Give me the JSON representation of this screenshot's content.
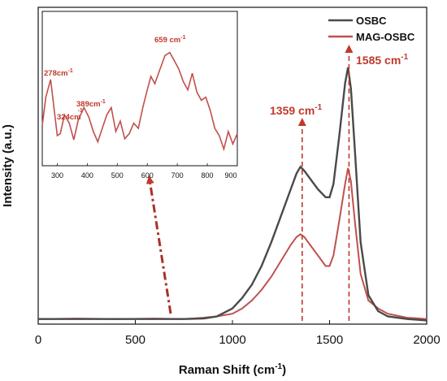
{
  "chart_data": {
    "type": "line",
    "xlabel": "Raman Shift (cm",
    "xlabel_sup": "-1",
    "xlabel_close": ")",
    "ylabel": "Intensity (a.u.)",
    "xlim": [
      0,
      2000
    ],
    "x_ticks": [
      "0",
      "500",
      "1000",
      "1500",
      "2000"
    ],
    "legend_position": "top-right",
    "colors": {
      "OSBC": "#4a4a4a",
      "MAG-OSBC": "#c0504d",
      "annotation": "#c0392b"
    },
    "series": [
      {
        "name": "OSBC",
        "x": [
          0,
          200,
          400,
          600,
          750,
          850,
          920,
          1000,
          1050,
          1100,
          1150,
          1200,
          1250,
          1300,
          1330,
          1350,
          1370,
          1400,
          1440,
          1480,
          1500,
          1520,
          1550,
          1580,
          1595,
          1610,
          1630,
          1660,
          1700,
          1750,
          1800,
          1900,
          2000
        ],
        "y": [
          0.01,
          0.01,
          0.01,
          0.01,
          0.01,
          0.012,
          0.02,
          0.05,
          0.09,
          0.14,
          0.21,
          0.3,
          0.4,
          0.5,
          0.56,
          0.585,
          0.57,
          0.54,
          0.5,
          0.47,
          0.47,
          0.52,
          0.7,
          0.9,
          0.96,
          0.88,
          0.65,
          0.3,
          0.1,
          0.04,
          0.02,
          0.01,
          0.005
        ]
      },
      {
        "name": "MAG-OSBC",
        "x": [
          0,
          200,
          400,
          600,
          750,
          850,
          920,
          1000,
          1050,
          1100,
          1150,
          1200,
          1250,
          1300,
          1330,
          1350,
          1370,
          1400,
          1440,
          1480,
          1500,
          1520,
          1550,
          1580,
          1595,
          1610,
          1630,
          1660,
          1700,
          1750,
          1800,
          1900,
          2000
        ],
        "y": [
          0.01,
          0.012,
          0.01,
          0.012,
          0.01,
          0.015,
          0.02,
          0.03,
          0.05,
          0.08,
          0.12,
          0.17,
          0.23,
          0.29,
          0.32,
          0.33,
          0.32,
          0.29,
          0.25,
          0.21,
          0.21,
          0.25,
          0.38,
          0.52,
          0.58,
          0.53,
          0.38,
          0.18,
          0.08,
          0.05,
          0.03,
          0.015,
          0.01
        ]
      }
    ],
    "annotations": [
      {
        "text": "1359 cm",
        "sup": "-1",
        "x": 1359
      },
      {
        "text": "1585 cm",
        "sup": "-1",
        "x": 1600
      }
    ],
    "inset": {
      "xlim": [
        250,
        900
      ],
      "x_ticks": [
        "300",
        "400",
        "500",
        "600",
        "700",
        "800",
        "900"
      ],
      "series": {
        "x": [
          250,
          262,
          278,
          290,
          300,
          310,
          324,
          340,
          355,
          370,
          389,
          405,
          420,
          435,
          450,
          465,
          480,
          495,
          510,
          525,
          540,
          555,
          570,
          585,
          600,
          612,
          625,
          640,
          659,
          675,
          690,
          705,
          720,
          735,
          750,
          765,
          780,
          795,
          810,
          825,
          840,
          855,
          870,
          885,
          900
        ],
        "y": [
          0.28,
          0.55,
          0.72,
          0.42,
          0.18,
          0.2,
          0.38,
          0.3,
          0.14,
          0.33,
          0.45,
          0.36,
          0.22,
          0.12,
          0.25,
          0.38,
          0.45,
          0.22,
          0.32,
          0.15,
          0.2,
          0.3,
          0.25,
          0.45,
          0.62,
          0.75,
          0.68,
          0.8,
          0.95,
          0.98,
          0.9,
          0.82,
          0.7,
          0.62,
          0.78,
          0.6,
          0.52,
          0.55,
          0.42,
          0.25,
          0.18,
          0.05,
          0.22,
          0.1,
          0.2
        ]
      },
      "annotations": [
        {
          "text": "278cm",
          "sup": "-1"
        },
        {
          "text": "324cm",
          "sup": "-1"
        },
        {
          "text": "389cm",
          "sup": "-1"
        },
        {
          "text": "659 cm",
          "sup": "-1"
        }
      ]
    }
  }
}
